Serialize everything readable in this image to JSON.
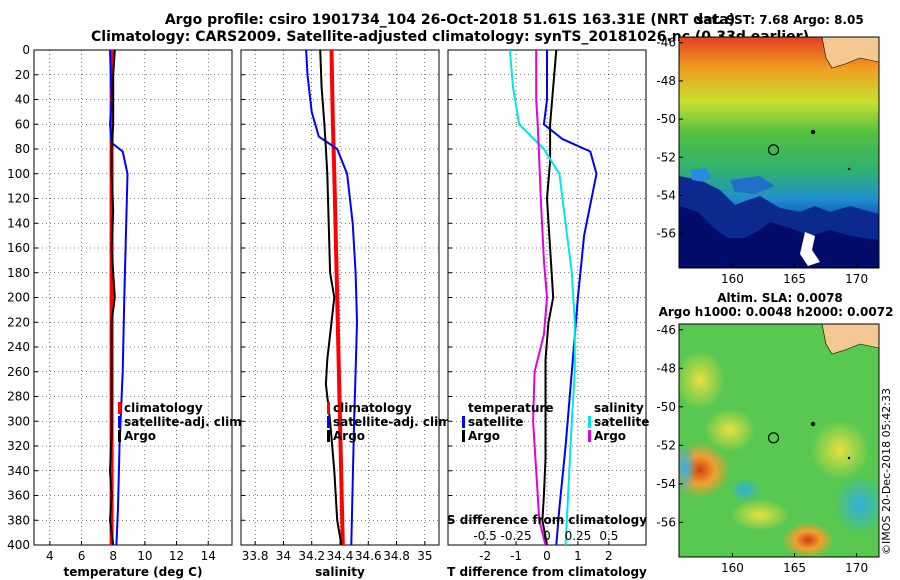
{
  "title": {
    "line1": "Argo profile: csiro 1901734_104 26-Oct-2018 51.61S 163.31E (NRT data)",
    "line2": "Climatology: CARS2009. Satellite-adjusted climatology: synTS_20181026.nc (0.33d earlier)"
  },
  "watermark": "©IMOS 20-Dec-2018 05:42:33",
  "colors": {
    "red": "#ff0000",
    "blue": "#0000ff",
    "black": "#000000",
    "cyan": "#00e5ee",
    "magenta": "#e000e0"
  },
  "chart_data": [
    {
      "type": "line",
      "id": "temperature",
      "xlabel": "temperature (deg C)",
      "xlim": [
        3,
        15.5
      ],
      "xticks": [
        "4",
        "6",
        "8",
        "10",
        "12",
        "14"
      ],
      "xtick_values": [
        4,
        6,
        8,
        10,
        12,
        14
      ],
      "ylim": [
        0,
        400
      ],
      "yticks": [
        "0",
        "20",
        "40",
        "60",
        "80",
        "100",
        "120",
        "140",
        "160",
        "180",
        "200",
        "220",
        "240",
        "260",
        "280",
        "300",
        "320",
        "340",
        "360",
        "380",
        "400"
      ],
      "ytick_values": [
        0,
        20,
        40,
        60,
        80,
        100,
        120,
        140,
        160,
        180,
        200,
        220,
        240,
        260,
        280,
        300,
        320,
        340,
        360,
        380,
        400
      ],
      "legend": [
        "climatology",
        "satellite-adj. clim.",
        "Argo"
      ],
      "series": [
        {
          "name": "climatology",
          "color": "red",
          "points": [
            [
              7.9,
              0
            ],
            [
              7.9,
              60
            ],
            [
              7.9,
              100
            ],
            [
              7.9,
              200
            ],
            [
              7.9,
              300
            ],
            [
              7.9,
              400
            ]
          ]
        },
        {
          "name": "satellite-adj. clim.",
          "color": "blue",
          "points": [
            [
              7.8,
              0
            ],
            [
              7.9,
              40
            ],
            [
              7.8,
              60
            ],
            [
              7.9,
              75
            ],
            [
              8.6,
              82
            ],
            [
              8.9,
              100
            ],
            [
              8.8,
              150
            ],
            [
              8.7,
              200
            ],
            [
              8.6,
              260
            ],
            [
              8.4,
              320
            ],
            [
              8.3,
              370
            ],
            [
              8.2,
              400
            ]
          ]
        },
        {
          "name": "Argo",
          "color": "black",
          "points": [
            [
              8.1,
              0
            ],
            [
              8.0,
              20
            ],
            [
              8.0,
              40
            ],
            [
              8.0,
              60
            ],
            [
              7.9,
              80
            ],
            [
              7.9,
              100
            ],
            [
              8.0,
              130
            ],
            [
              7.9,
              160
            ],
            [
              8.0,
              180
            ],
            [
              8.1,
              200
            ],
            [
              7.9,
              220
            ],
            [
              7.9,
              250
            ],
            [
              7.9,
              280
            ],
            [
              7.9,
              310
            ],
            [
              7.8,
              340
            ],
            [
              7.9,
              360
            ],
            [
              7.8,
              380
            ],
            [
              8.0,
              400
            ]
          ]
        }
      ]
    },
    {
      "type": "line",
      "id": "salinity",
      "xlabel": "salinity",
      "xlim": [
        33.7,
        35.1
      ],
      "xticks": [
        "33.8",
        "34",
        "34.2",
        "34.4",
        "34.6",
        "34.8",
        "35"
      ],
      "xtick_values": [
        33.8,
        34.0,
        34.2,
        34.4,
        34.6,
        34.8,
        35.0
      ],
      "ylim": [
        0,
        400
      ],
      "legend": [
        "climatology",
        "satellite-adj. clim.",
        "Argo"
      ],
      "series": [
        {
          "name": "climatology",
          "color": "red",
          "points": [
            [
              34.34,
              0
            ],
            [
              34.35,
              60
            ],
            [
              34.36,
              100
            ],
            [
              34.38,
              200
            ],
            [
              34.4,
              300
            ],
            [
              34.42,
              400
            ]
          ]
        },
        {
          "name": "satellite-adj. clim.",
          "color": "blue",
          "points": [
            [
              34.16,
              0
            ],
            [
              34.17,
              20
            ],
            [
              34.2,
              50
            ],
            [
              34.25,
              70
            ],
            [
              34.38,
              80
            ],
            [
              34.45,
              100
            ],
            [
              34.49,
              140
            ],
            [
              34.51,
              180
            ],
            [
              34.52,
              220
            ],
            [
              34.51,
              260
            ],
            [
              34.5,
              300
            ],
            [
              34.49,
              350
            ],
            [
              34.48,
              400
            ]
          ]
        },
        {
          "name": "Argo",
          "color": "black",
          "points": [
            [
              34.26,
              0
            ],
            [
              34.27,
              30
            ],
            [
              34.29,
              60
            ],
            [
              34.3,
              80
            ],
            [
              34.31,
              100
            ],
            [
              34.32,
              140
            ],
            [
              34.33,
              180
            ],
            [
              34.36,
              200
            ],
            [
              34.33,
              230
            ],
            [
              34.31,
              250
            ],
            [
              34.3,
              270
            ],
            [
              34.33,
              300
            ],
            [
              34.36,
              340
            ],
            [
              34.38,
              380
            ],
            [
              34.41,
              400
            ]
          ]
        }
      ]
    },
    {
      "type": "line",
      "id": "difference",
      "xlabel": "T difference from climatology",
      "xlabel_top": "S difference from climatology",
      "xlim": [
        -3.2,
        3.2
      ],
      "xticks": [
        "-2",
        "-1",
        "0",
        "1",
        "2"
      ],
      "xtick_values": [
        -2,
        -1,
        0,
        1,
        2
      ],
      "sticks": [
        "-0.5",
        "-0.25",
        "0",
        "0.25",
        "0.5"
      ],
      "stick_values": [
        -2,
        -1,
        0,
        1,
        2
      ],
      "ylim": [
        0,
        400
      ],
      "legend_t_title": "temperature",
      "legend_s_title": "salinity",
      "legend_t": [
        "satellite",
        "Argo"
      ],
      "legend_s": [
        "satellite",
        "Argo"
      ],
      "series": [
        {
          "name": "T satellite",
          "color": "blue",
          "points": [
            [
              0,
              0
            ],
            [
              0,
              40
            ],
            [
              -0.1,
              60
            ],
            [
              0.5,
              72
            ],
            [
              1.4,
              82
            ],
            [
              1.6,
              100
            ],
            [
              1.2,
              150
            ],
            [
              1.0,
              200
            ],
            [
              0.8,
              260
            ],
            [
              0.6,
              320
            ],
            [
              0.4,
              370
            ],
            [
              0.3,
              400
            ]
          ]
        },
        {
          "name": "T Argo",
          "color": "black",
          "points": [
            [
              0.3,
              0
            ],
            [
              0.2,
              30
            ],
            [
              0.1,
              60
            ],
            [
              0.1,
              90
            ],
            [
              0.0,
              120
            ],
            [
              0.1,
              160
            ],
            [
              0.2,
              200
            ],
            [
              0.05,
              220
            ],
            [
              -0.05,
              250
            ],
            [
              -0.05,
              290
            ],
            [
              -0.05,
              330
            ],
            [
              -0.1,
              360
            ],
            [
              -0.15,
              380
            ],
            [
              0.0,
              400
            ]
          ]
        },
        {
          "name": "S satellite",
          "color": "cyan",
          "points": [
            [
              -1.2,
              0
            ],
            [
              -1.1,
              30
            ],
            [
              -0.9,
              60
            ],
            [
              -0.1,
              80
            ],
            [
              0.4,
              100
            ],
            [
              0.6,
              140
            ],
            [
              0.8,
              180
            ],
            [
              0.9,
              220
            ],
            [
              0.9,
              260
            ],
            [
              0.8,
              300
            ],
            [
              0.7,
              350
            ],
            [
              0.6,
              400
            ]
          ]
        },
        {
          "name": "S Argo",
          "color": "magenta",
          "points": [
            [
              -0.35,
              0
            ],
            [
              -0.35,
              40
            ],
            [
              -0.3,
              60
            ],
            [
              -0.25,
              90
            ],
            [
              -0.2,
              120
            ],
            [
              -0.1,
              170
            ],
            [
              0.0,
              200
            ],
            [
              -0.1,
              230
            ],
            [
              -0.4,
              260
            ],
            [
              -0.45,
              300
            ],
            [
              -0.35,
              340
            ],
            [
              -0.25,
              380
            ],
            [
              -0.05,
              400
            ]
          ]
        }
      ]
    },
    {
      "type": "heatmap",
      "id": "sst-map",
      "title": "sat. SST: 7.68 Argo: 8.05",
      "xticks": [
        "160",
        "165",
        "170"
      ],
      "xtick_values": [
        160,
        165,
        170
      ],
      "yticks": [
        "-46",
        "-48",
        "-50",
        "-52",
        "-54",
        "-56"
      ],
      "ytick_values": [
        -46,
        -48,
        -50,
        -52,
        -54,
        -56
      ],
      "xlim": [
        155.7,
        171.8
      ],
      "ylim": [
        -57.8,
        -45.7
      ],
      "profile_marker": [
        163.31,
        -51.61
      ]
    },
    {
      "type": "heatmap",
      "id": "sla-map",
      "title_line1": "Altim. SLA: 0.0078",
      "title_line2": "Argo h1000: 0.0048 h2000: 0.0072",
      "xticks": [
        "160",
        "165",
        "170"
      ],
      "xtick_values": [
        160,
        165,
        170
      ],
      "yticks": [
        "-46",
        "-48",
        "-50",
        "-52",
        "-54",
        "-56"
      ],
      "ytick_values": [
        -46,
        -48,
        -50,
        -52,
        -54,
        -56
      ],
      "xlim": [
        155.7,
        171.8
      ],
      "ylim": [
        -57.8,
        -45.7
      ],
      "profile_marker": [
        163.31,
        -51.61
      ]
    }
  ]
}
